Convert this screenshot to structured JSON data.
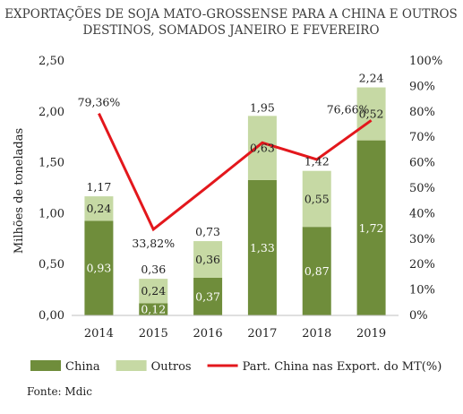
{
  "chart_data": {
    "type": "bar",
    "title": [
      "EXPORTAÇÕES DE SOJA MATO-GROSSENSE PARA A CHINA E OUTROS",
      "DESTINOS, SOMADOS JANEIRO E FEVEREIRO"
    ],
    "ylabel": "Milhões de toneladas",
    "categories": [
      "2014",
      "2015",
      "2016",
      "2017",
      "2018",
      "2019"
    ],
    "ylim": [
      0,
      2.5
    ],
    "y_ticks": [
      "0,00",
      "0,50",
      "1,00",
      "1,50",
      "2,00",
      "2,50"
    ],
    "y2lim": [
      0,
      100
    ],
    "y2_ticks": [
      "0%",
      "10%",
      "20%",
      "30%",
      "40%",
      "50%",
      "60%",
      "70%",
      "80%",
      "90%",
      "100%"
    ],
    "stacked": true,
    "series": [
      {
        "name": "China",
        "kind": "bar",
        "color": "#6f8d3b",
        "values": [
          0.93,
          0.12,
          0.37,
          1.33,
          0.87,
          1.72
        ],
        "labels": [
          "0,93",
          "0,12",
          "0,37",
          "1,33",
          "0,87",
          "1,72"
        ]
      },
      {
        "name": "Outros",
        "kind": "bar",
        "color": "#c6d9a4",
        "values": [
          0.24,
          0.24,
          0.36,
          0.63,
          0.55,
          0.52
        ],
        "labels": [
          "0,24",
          "0,24",
          "0,36",
          "0,63",
          "0,55",
          "0,52"
        ]
      },
      {
        "name": "Part. China nas Export. do MT(%)",
        "kind": "line",
        "axis": "right",
        "color": "#e3171c",
        "values": [
          79.36,
          33.82,
          50.68,
          67.86,
          61.27,
          76.66
        ],
        "labels": [
          "79,36%",
          "33,82%",
          "",
          "",
          "",
          "76,66%"
        ]
      }
    ],
    "totals": [
      1.17,
      0.36,
      0.73,
      1.95,
      1.42,
      2.24
    ],
    "total_labels": [
      "1,17",
      "0,36",
      "0,73",
      "1,95",
      "1,42",
      "2,24"
    ],
    "legend_position": "bottom",
    "grid": false
  },
  "source": "Fonte: Mdic"
}
